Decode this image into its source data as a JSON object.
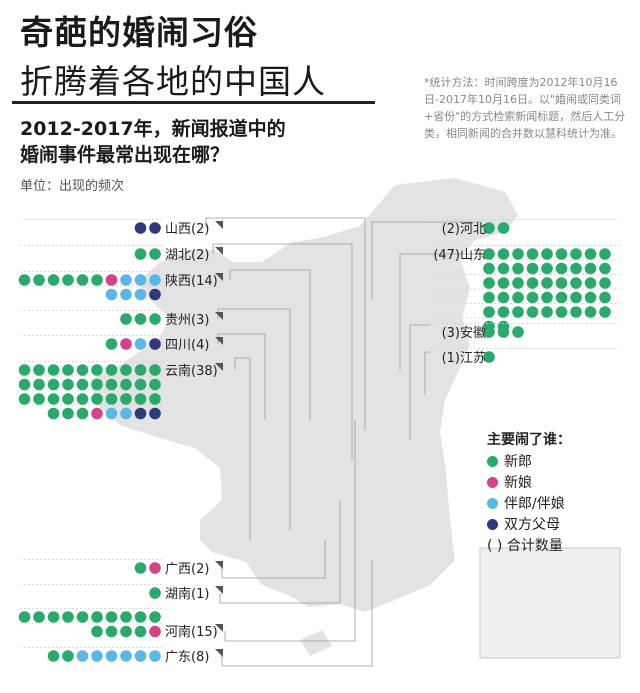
{
  "title_line1": "奇葩的婚闹习俗",
  "title_line2": "折腾着各地的中国人",
  "subtitle": "2012-2017年，新闻报道中的\n婚闹事件最常出现在哪？",
  "unit": "单位：出现的频次",
  "method": "*统计方法：时间跨度为2012年10月16日-2017年10月16日。以\"婚闹或同类词+省份\"的方式检索新闻标题，然后人工分类，相同新闻的合并数以慧科统计为准。",
  "legend": {
    "title": "主要闹了谁：",
    "items": [
      {
        "label": "新郎",
        "color": "#2aaa6a"
      },
      {
        "label": "新娘",
        "color": "#d6418b"
      },
      {
        "label": "伴郎/伴娘",
        "color": "#5ab8e6"
      },
      {
        "label": "双方父母",
        "color": "#2e3a7a"
      }
    ],
    "count_label": "( ) 合计数量"
  },
  "colors": {
    "groom": "#2aaa6a",
    "bride": "#d6418b",
    "attendants": "#5ab8e6",
    "parents": "#2e3a7a",
    "map": "#e3e3e3",
    "line": "#9a9a9a"
  },
  "chart_data": {
    "type": "pictogram",
    "series": [
      {
        "name": "新郎"
      },
      {
        "name": "新娘"
      },
      {
        "name": "伴郎/伴娘"
      },
      {
        "name": "双方父母"
      }
    ],
    "provinces": [
      {
        "name": "山西",
        "label": "山西(2)",
        "total": 2,
        "groom": 0,
        "bride": 0,
        "attendants": 0,
        "parents": 2
      },
      {
        "name": "湖北",
        "label": "湖北(2)",
        "total": 2,
        "groom": 2,
        "bride": 0,
        "attendants": 0,
        "parents": 0
      },
      {
        "name": "陕西",
        "label": "陕西(14)",
        "total": 14,
        "groom": 6,
        "bride": 1,
        "attendants": 6,
        "parents": 1
      },
      {
        "name": "贵州",
        "label": "贵州(3)",
        "total": 3,
        "groom": 3,
        "bride": 0,
        "attendants": 0,
        "parents": 0
      },
      {
        "name": "四川",
        "label": "四川(4)",
        "total": 4,
        "groom": 1,
        "bride": 1,
        "attendants": 1,
        "parents": 1
      },
      {
        "name": "云南",
        "label": "云南(38)",
        "total": 38,
        "groom": 33,
        "bride": 1,
        "attendants": 2,
        "parents": 2
      },
      {
        "name": "广西",
        "label": "广西(2)",
        "total": 2,
        "groom": 1,
        "bride": 1,
        "attendants": 0,
        "parents": 0
      },
      {
        "name": "湖南",
        "label": "湖南(1)",
        "total": 1,
        "groom": 1,
        "bride": 0,
        "attendants": 0,
        "parents": 0
      },
      {
        "name": "河南",
        "label": "河南(15)",
        "total": 15,
        "groom": 14,
        "bride": 1,
        "attendants": 0,
        "parents": 0
      },
      {
        "name": "广东",
        "label": "广东(8)",
        "total": 8,
        "groom": 2,
        "bride": 0,
        "attendants": 6,
        "parents": 0
      },
      {
        "name": "河北",
        "label": "(2)河北",
        "total": 2,
        "groom": 2,
        "bride": 0,
        "attendants": 0,
        "parents": 0
      },
      {
        "name": "山东",
        "label": "(47)山东",
        "total": 47,
        "groom": 47,
        "bride": 0,
        "attendants": 0,
        "parents": 0
      },
      {
        "name": "安徽",
        "label": "(3)安徽",
        "total": 3,
        "groom": 3,
        "bride": 0,
        "attendants": 0,
        "parents": 0
      },
      {
        "name": "江苏",
        "label": "(1)江苏",
        "total": 1,
        "groom": 1,
        "bride": 0,
        "attendants": 0,
        "parents": 0
      }
    ]
  }
}
